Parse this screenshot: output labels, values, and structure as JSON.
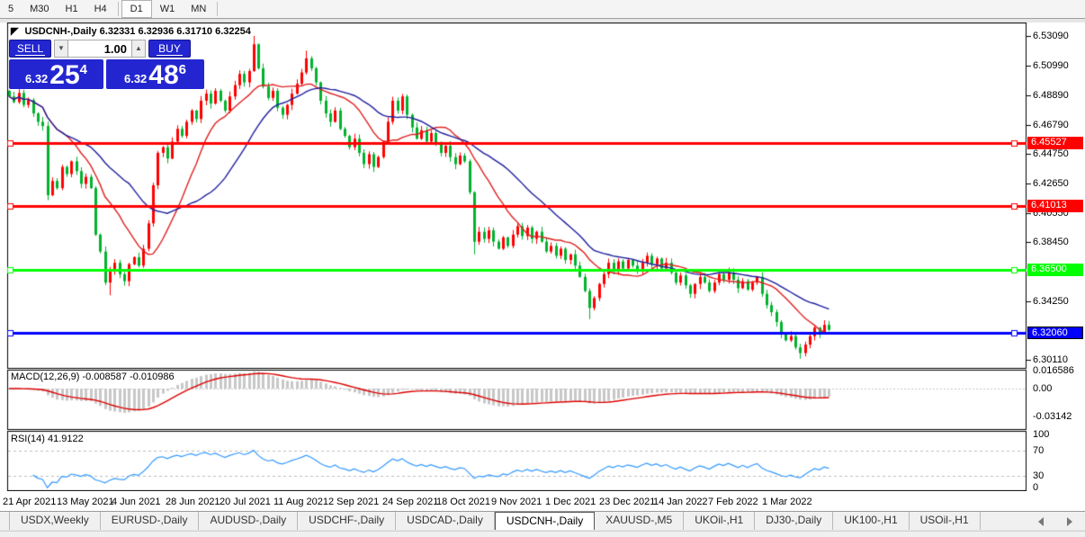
{
  "toolbar": {
    "timeframes": [
      "5",
      "M30",
      "H1",
      "H4",
      "D1",
      "W1",
      "MN"
    ],
    "selected": "D1"
  },
  "chart": {
    "title_text": "USDCNH-,Daily  6.32331 6.32936 6.31710 6.32254"
  },
  "trade_panel": {
    "sell_label": "SELL",
    "buy_label": "BUY",
    "volume": "1.00",
    "bid_small": "6.32",
    "bid_big": "25",
    "bid_sup": "4",
    "ask_small": "6.32",
    "ask_big": "48",
    "ask_sup": "6"
  },
  "colors": {
    "bull": "#ff0000",
    "bear": "#00b22c",
    "ma_fast": "#e02020",
    "ma_slow": "#1f1f9e",
    "macd_hist": "#c8c8c8",
    "macd_signal": "#dd0000",
    "rsi_line": "#3399ff",
    "panel_blue": "#2326d0",
    "level_red": "#ff0000",
    "level_green": "#00ff00",
    "level_blue": "#0000ff"
  },
  "chart_data": {
    "type": "candlestick",
    "symbol": "USDCNH-",
    "timeframe": "Daily",
    "title": "USDCNH-,Daily",
    "current_ohlc": {
      "open": 6.32331,
      "high": 6.32936,
      "low": 6.3171,
      "close": 6.32254
    },
    "price_axis_ticks": [
      "6.53090",
      "6.50990",
      "6.48890",
      "6.46790",
      "6.44750",
      "6.42650",
      "6.40550",
      "6.38450",
      "6.34250",
      "6.30110"
    ],
    "levels": [
      {
        "value": 6.45527,
        "label": "6.45527",
        "color": "#ff0000"
      },
      {
        "value": 6.41013,
        "label": "6.41013",
        "color": "#ff0000"
      },
      {
        "value": 6.365,
        "label": "6.36500",
        "color": "#00ff00"
      },
      {
        "value": 6.3206,
        "label": "6.32060",
        "color": "#0000ff"
      }
    ],
    "first_open": 6.492,
    "closes": [
      6.488,
      6.484,
      6.4905,
      6.482,
      6.4855,
      6.476,
      6.47,
      6.467,
      6.418,
      6.428,
      6.423,
      6.438,
      6.433,
      6.442,
      6.435,
      6.426,
      6.431,
      6.423,
      6.39,
      6.378,
      6.356,
      6.364,
      6.37,
      6.362,
      6.357,
      6.369,
      6.374,
      6.368,
      6.38,
      6.398,
      6.425,
      6.448,
      6.452,
      6.444,
      6.456,
      6.465,
      6.46,
      6.47,
      6.478,
      6.472,
      6.485,
      6.49,
      6.483,
      6.492,
      6.485,
      6.478,
      6.488,
      6.496,
      6.504,
      6.498,
      6.506,
      6.525,
      6.508,
      6.495,
      6.487,
      6.492,
      6.48,
      6.475,
      6.482,
      6.49,
      6.497,
      6.505,
      6.515,
      6.508,
      6.498,
      6.485,
      6.476,
      6.47,
      6.478,
      6.465,
      6.46,
      6.452,
      6.458,
      6.448,
      6.44,
      6.447,
      6.438,
      6.445,
      6.456,
      6.47,
      6.485,
      6.478,
      6.488,
      6.475,
      6.466,
      6.458,
      6.464,
      6.456,
      6.462,
      6.455,
      6.448,
      6.453,
      6.445,
      6.44,
      6.446,
      6.442,
      6.42,
      6.385,
      6.392,
      6.387,
      6.393,
      6.385,
      6.38,
      6.388,
      6.382,
      6.39,
      6.396,
      6.389,
      6.395,
      6.387,
      6.392,
      6.385,
      6.378,
      6.382,
      6.375,
      6.38,
      6.372,
      6.376,
      6.368,
      6.36,
      6.35,
      6.338,
      6.345,
      6.355,
      6.362,
      6.37,
      6.365,
      6.371,
      6.366,
      6.372,
      6.368,
      6.364,
      6.37,
      6.375,
      6.369,
      6.373,
      6.366,
      6.37,
      6.363,
      6.356,
      6.361,
      6.354,
      6.348,
      6.355,
      6.36,
      6.356,
      6.35,
      6.356,
      6.362,
      6.358,
      6.363,
      6.358,
      6.352,
      6.357,
      6.351,
      6.356,
      6.36,
      6.348,
      6.34,
      6.335,
      6.328,
      6.32,
      6.315,
      6.318,
      6.31,
      6.306,
      6.312,
      6.318,
      6.324,
      6.32,
      6.326,
      6.3225
    ],
    "wick_overrides": [
      {
        "i": 21,
        "low": 6.347
      },
      {
        "i": 51,
        "high": 6.531
      },
      {
        "i": 62,
        "high": 6.5205
      },
      {
        "i": 97,
        "low": 6.376
      },
      {
        "i": 121,
        "low": 6.33
      },
      {
        "i": 165,
        "low": 6.302
      }
    ],
    "indicators": {
      "macd": {
        "label": "MACD(12,26,9) -0.008587 -0.010986",
        "fast": 12,
        "slow": 26,
        "signal": 9,
        "current_macd": -0.008587,
        "current_signal": -0.010986,
        "axis_labels": [
          "0.016586",
          "0.00",
          "-0.03142"
        ]
      },
      "rsi": {
        "label": "RSI(14) 41.9122",
        "period": 14,
        "current": 41.9122,
        "levels": [
          70,
          30
        ],
        "axis_labels": [
          "100",
          "70",
          "30",
          "0"
        ]
      }
    },
    "x_dates": [
      "21 Apr 2021",
      "13 May 2021",
      "4 Jun 2021",
      "28 Jun 2021",
      "20 Jul 2021",
      "11 Aug 2021",
      "2 Sep 2021",
      "24 Sep 2021",
      "18 Oct 2021",
      "9 Nov 2021",
      "1 Dec 2021",
      "23 Dec 2021",
      "14 Jan 2022",
      "7 Feb 2022",
      "1 Mar 2022"
    ]
  },
  "tabs": {
    "items": [
      "USDX,Weekly",
      "EURUSD-,Daily",
      "AUDUSD-,Daily",
      "USDCHF-,Daily",
      "USDCAD-,Daily",
      "USDCNH-,Daily",
      "XAUUSD-,M5",
      "UKOil-,H1",
      "DJ30-,Daily",
      "UK100-,H1",
      "USOil-,H1"
    ],
    "active": "USDCNH-,Daily"
  }
}
